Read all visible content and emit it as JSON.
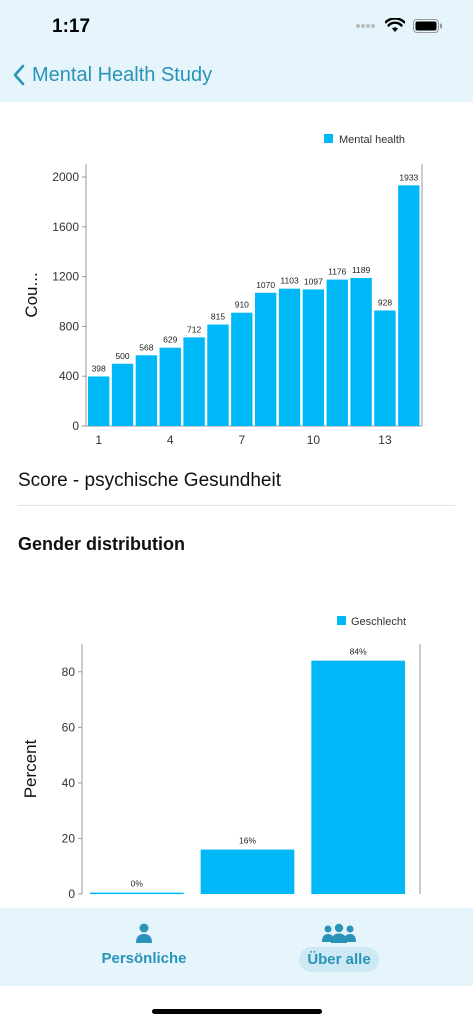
{
  "status": {
    "time": "1:17"
  },
  "nav": {
    "title": "Mental Health Study"
  },
  "score_label": "Score - psychische Gesundheit",
  "section_title": "Gender distribution",
  "tabs": [
    {
      "label": "Persönliche",
      "icon": "person-icon",
      "active": false
    },
    {
      "label": "Über alle",
      "icon": "group-icon",
      "active": true
    }
  ],
  "colors": {
    "accent": "#2a93b8",
    "bar": "#00b8f8",
    "header_bg": "#e6f5fb"
  },
  "chart_data": [
    {
      "type": "bar",
      "legend": "Mental health",
      "ylabel": "Cou...",
      "x": [
        1,
        2,
        3,
        4,
        5,
        6,
        7,
        8,
        9,
        10,
        11,
        12,
        13,
        14
      ],
      "xticks": [
        1,
        4,
        7,
        10,
        13
      ],
      "yticks": [
        0,
        400,
        800,
        1200,
        1600,
        2000
      ],
      "values": [
        398,
        500,
        568,
        629,
        712,
        815,
        910,
        1070,
        1103,
        1097,
        1176,
        1189,
        928,
        1933
      ],
      "value_labels": [
        "398",
        "500",
        "568",
        "629",
        "712",
        "815",
        "910",
        "1070",
        "1103",
        "1097",
        "1176",
        "1189",
        "928",
        "1933"
      ],
      "ylim": [
        0,
        2000
      ]
    },
    {
      "type": "bar",
      "legend": "Geschlecht",
      "ylabel": "Percent",
      "values": [
        0.5,
        16,
        84
      ],
      "value_labels": [
        "0%",
        "16%",
        "84%"
      ],
      "yticks": [
        0,
        20,
        40,
        60,
        80
      ],
      "ylim": [
        0,
        90
      ]
    }
  ]
}
